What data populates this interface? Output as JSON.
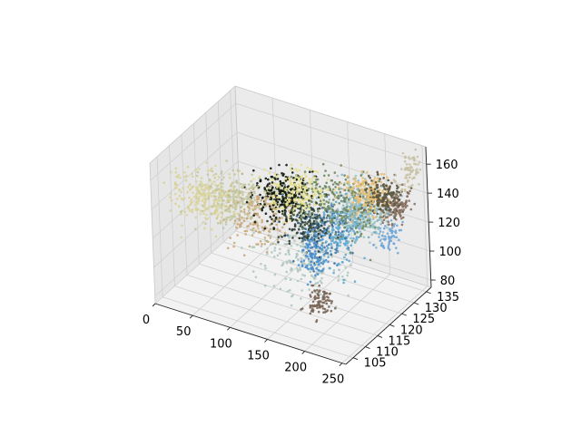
{
  "chart_data": {
    "type": "scatter",
    "projection": "3d",
    "title": "",
    "xlabel": "",
    "ylabel": "",
    "zlabel": "",
    "grid": true,
    "legend": "none",
    "x_ticks": [
      "0",
      "50",
      "100",
      "150",
      "200",
      "250"
    ],
    "y_ticks": [
      "105",
      "110",
      "115",
      "120",
      "125",
      "130",
      "135"
    ],
    "z_ticks": [
      "80",
      "100",
      "120",
      "140",
      "160"
    ],
    "xlim": [
      0,
      255
    ],
    "ylim": [
      102,
      137
    ],
    "zlim": [
      75,
      172
    ],
    "clusters": [
      {
        "center": [
          40,
          112,
          140
        ],
        "spread": [
          22,
          3,
          7
        ],
        "n": 260,
        "color": "#d8d39a"
      },
      {
        "center": [
          70,
          114,
          142
        ],
        "spread": [
          20,
          3,
          7
        ],
        "n": 200,
        "color": "#c3c79e"
      },
      {
        "center": [
          95,
          116,
          128
        ],
        "spread": [
          18,
          3,
          10
        ],
        "n": 170,
        "color": "#c9a97a"
      },
      {
        "center": [
          120,
          119,
          143
        ],
        "spread": [
          14,
          3,
          6
        ],
        "n": 260,
        "color": "#101a10"
      },
      {
        "center": [
          135,
          120,
          146
        ],
        "spread": [
          16,
          3,
          6
        ],
        "n": 240,
        "color": "#e7e08e"
      },
      {
        "center": [
          150,
          119,
          130
        ],
        "spread": [
          16,
          3,
          8
        ],
        "n": 170,
        "color": "#2d4037"
      },
      {
        "center": [
          165,
          121,
          124
        ],
        "spread": [
          15,
          3,
          8
        ],
        "n": 140,
        "color": "#3f6f9c"
      },
      {
        "center": [
          180,
          123,
          141
        ],
        "spread": [
          24,
          4,
          9
        ],
        "n": 280,
        "color": "#6e8a64"
      },
      {
        "center": [
          185,
          122,
          122
        ],
        "spread": [
          14,
          3,
          10
        ],
        "n": 170,
        "color": "#5fa8d3"
      },
      {
        "center": [
          205,
          124,
          137
        ],
        "spread": [
          16,
          3,
          8
        ],
        "n": 170,
        "color": "#8ab8c8"
      },
      {
        "center": [
          210,
          126,
          148
        ],
        "spread": [
          12,
          2,
          6
        ],
        "n": 200,
        "color": "#e8bf72"
      },
      {
        "center": [
          200,
          128,
          132
        ],
        "spread": [
          14,
          2,
          9
        ],
        "n": 160,
        "color": "#9ec4c0"
      },
      {
        "center": [
          230,
          127,
          149
        ],
        "spread": [
          11,
          2,
          5
        ],
        "n": 190,
        "color": "#5c5640"
      },
      {
        "center": [
          240,
          129,
          140
        ],
        "spread": [
          8,
          2,
          5
        ],
        "n": 110,
        "color": "#8a7060"
      },
      {
        "center": [
          250,
          131,
          162
        ],
        "spread": [
          7,
          2,
          6
        ],
        "n": 70,
        "color": "#c8c2a4"
      },
      {
        "center": [
          150,
          118,
          105
        ],
        "spread": [
          28,
          3,
          10
        ],
        "n": 190,
        "color": "#aec8c0"
      },
      {
        "center": [
          195,
          110,
          96
        ],
        "spread": [
          6,
          2,
          4
        ],
        "n": 90,
        "color": "#7a6656"
      },
      {
        "center": [
          180,
          113,
          120
        ],
        "spread": [
          8,
          2,
          6
        ],
        "n": 90,
        "color": "#4a8fd0"
      },
      {
        "center": [
          245,
          124,
          128
        ],
        "spread": [
          7,
          2,
          4
        ],
        "n": 60,
        "color": "#6fa6d9"
      }
    ]
  }
}
